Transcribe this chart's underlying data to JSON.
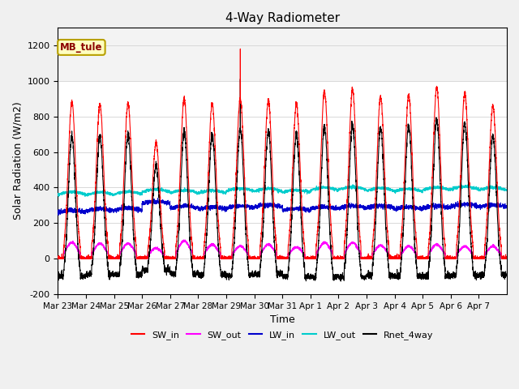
{
  "title": "4-Way Radiometer",
  "xlabel": "Time",
  "ylabel": "Solar Radiation (W/m2)",
  "annotation": "MB_tule",
  "ylim": [
    -200,
    1300
  ],
  "yticks": [
    -200,
    0,
    200,
    400,
    600,
    800,
    1000,
    1200
  ],
  "num_days": 16,
  "points_per_day": 288,
  "colors": {
    "SW_in": "#ff0000",
    "SW_out": "#ff00ff",
    "LW_in": "#0000cc",
    "LW_out": "#00cccc",
    "Rnet_4way": "#000000"
  },
  "line_width": 0.8,
  "background_color": "#f0f0f0",
  "plot_bg_color": "#ffffff",
  "grid_color": "#d8d8d8",
  "tick_dates": [
    "Mar 23",
    "Mar 24",
    "Mar 25",
    "Mar 26",
    "Mar 27",
    "Mar 28",
    "Mar 29",
    "Mar 30",
    "Mar 31",
    "Apr 1",
    "Apr 2",
    "Apr 3",
    "Apr 4",
    "Apr 5",
    "Apr 6",
    "Apr 7"
  ]
}
